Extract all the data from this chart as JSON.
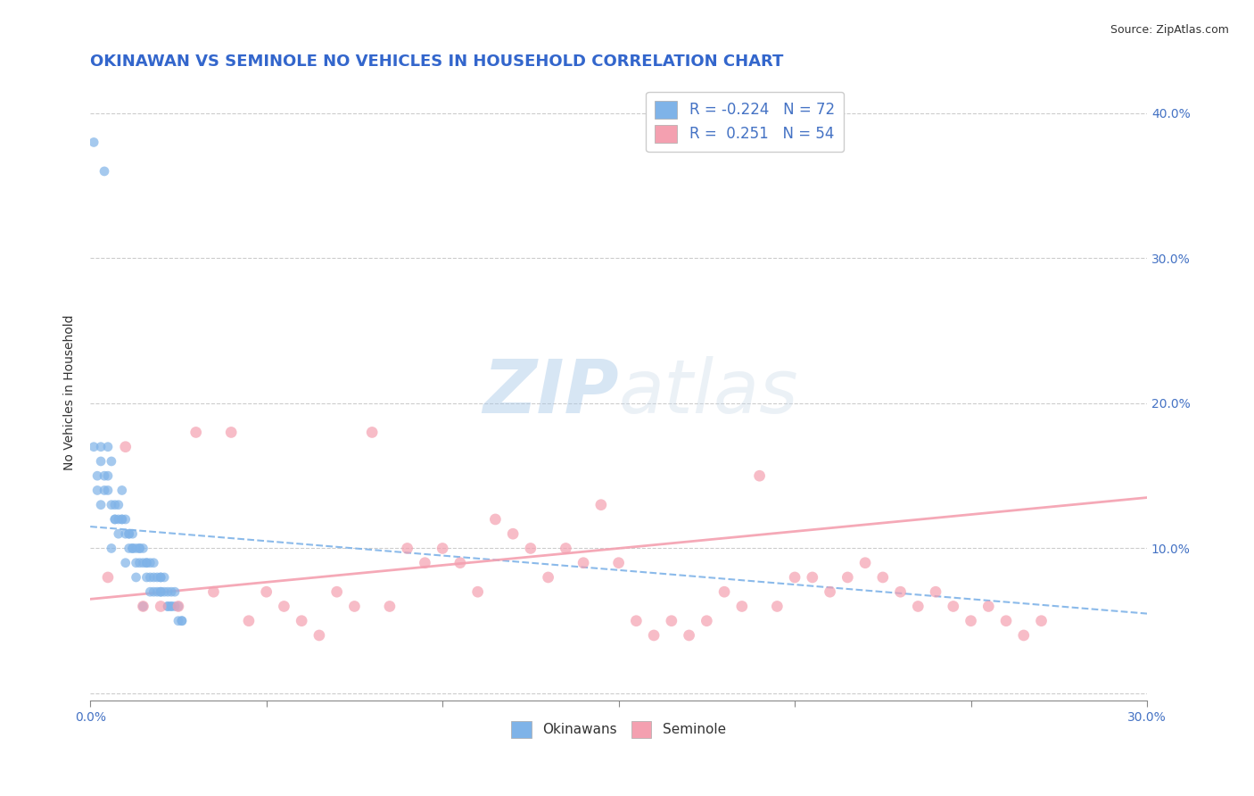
{
  "title": "OKINAWAN VS SEMINOLE NO VEHICLES IN HOUSEHOLD CORRELATION CHART",
  "source": "Source: ZipAtlas.com",
  "xlabel": "",
  "ylabel": "No Vehicles in Household",
  "watermark_zip": "ZIP",
  "watermark_atlas": "atlas",
  "xlim": [
    0.0,
    0.3
  ],
  "ylim": [
    -0.005,
    0.42
  ],
  "xticks": [
    0.0,
    0.05,
    0.1,
    0.15,
    0.2,
    0.25,
    0.3
  ],
  "yticks": [
    0.0,
    0.1,
    0.2,
    0.3,
    0.4
  ],
  "ytick_labels": [
    "",
    "10.0%",
    "20.0%",
    "30.0%",
    "40.0%"
  ],
  "color_okinawan": "#7fb3e8",
  "color_seminole": "#f4a0b0",
  "color_okinawan_line": "#7fb3e8",
  "color_seminole_line": "#f4a0b0",
  "okinawan_scatter_x": [
    0.001,
    0.004,
    0.002,
    0.003,
    0.005,
    0.003,
    0.004,
    0.006,
    0.007,
    0.005,
    0.008,
    0.006,
    0.009,
    0.01,
    0.008,
    0.01,
    0.012,
    0.011,
    0.013,
    0.009,
    0.015,
    0.014,
    0.016,
    0.013,
    0.012,
    0.017,
    0.018,
    0.016,
    0.019,
    0.02,
    0.015,
    0.021,
    0.022,
    0.02,
    0.023,
    0.018,
    0.024,
    0.025,
    0.022,
    0.026,
    0.005,
    0.007,
    0.01,
    0.013,
    0.016,
    0.019,
    0.022,
    0.025,
    0.008,
    0.011,
    0.014,
    0.017,
    0.02,
    0.023,
    0.004,
    0.006,
    0.009,
    0.012,
    0.015,
    0.018,
    0.021,
    0.024,
    0.003,
    0.002,
    0.001,
    0.007,
    0.011,
    0.014,
    0.017,
    0.02,
    0.023,
    0.026
  ],
  "okinawan_scatter_y": [
    0.38,
    0.36,
    0.15,
    0.13,
    0.15,
    0.17,
    0.14,
    0.16,
    0.12,
    0.17,
    0.13,
    0.1,
    0.14,
    0.12,
    0.11,
    0.09,
    0.1,
    0.11,
    0.08,
    0.12,
    0.09,
    0.1,
    0.08,
    0.09,
    0.1,
    0.07,
    0.08,
    0.09,
    0.07,
    0.08,
    0.06,
    0.07,
    0.06,
    0.07,
    0.06,
    0.07,
    0.06,
    0.05,
    0.06,
    0.05,
    0.14,
    0.13,
    0.11,
    0.1,
    0.09,
    0.08,
    0.07,
    0.06,
    0.12,
    0.11,
    0.1,
    0.09,
    0.08,
    0.07,
    0.15,
    0.13,
    0.12,
    0.11,
    0.1,
    0.09,
    0.08,
    0.07,
    0.16,
    0.14,
    0.17,
    0.12,
    0.1,
    0.09,
    0.08,
    0.07,
    0.06,
    0.05
  ],
  "seminole_scatter_x": [
    0.005,
    0.01,
    0.015,
    0.02,
    0.025,
    0.03,
    0.035,
    0.04,
    0.045,
    0.05,
    0.055,
    0.06,
    0.065,
    0.07,
    0.075,
    0.08,
    0.085,
    0.09,
    0.095,
    0.1,
    0.105,
    0.11,
    0.115,
    0.12,
    0.125,
    0.13,
    0.135,
    0.14,
    0.145,
    0.15,
    0.155,
    0.16,
    0.165,
    0.17,
    0.175,
    0.18,
    0.185,
    0.19,
    0.195,
    0.2,
    0.205,
    0.21,
    0.215,
    0.22,
    0.225,
    0.23,
    0.235,
    0.24,
    0.245,
    0.25,
    0.255,
    0.26,
    0.265,
    0.27
  ],
  "seminole_scatter_y": [
    0.08,
    0.17,
    0.06,
    0.06,
    0.06,
    0.18,
    0.07,
    0.18,
    0.05,
    0.07,
    0.06,
    0.05,
    0.04,
    0.07,
    0.06,
    0.18,
    0.06,
    0.1,
    0.09,
    0.1,
    0.09,
    0.07,
    0.12,
    0.11,
    0.1,
    0.08,
    0.1,
    0.09,
    0.13,
    0.09,
    0.05,
    0.04,
    0.05,
    0.04,
    0.05,
    0.07,
    0.06,
    0.15,
    0.06,
    0.08,
    0.08,
    0.07,
    0.08,
    0.09,
    0.08,
    0.07,
    0.06,
    0.07,
    0.06,
    0.05,
    0.06,
    0.05,
    0.04,
    0.05
  ],
  "okinawan_line_y_start": 0.115,
  "okinawan_line_y_end": 0.055,
  "seminole_line_y_start": 0.065,
  "seminole_line_y_end": 0.135,
  "grid_color": "#cccccc",
  "background_color": "#ffffff",
  "title_fontsize": 13,
  "axis_fontsize": 10,
  "tick_fontsize": 10,
  "scatter_alpha": 0.7,
  "scatter_size": 60
}
